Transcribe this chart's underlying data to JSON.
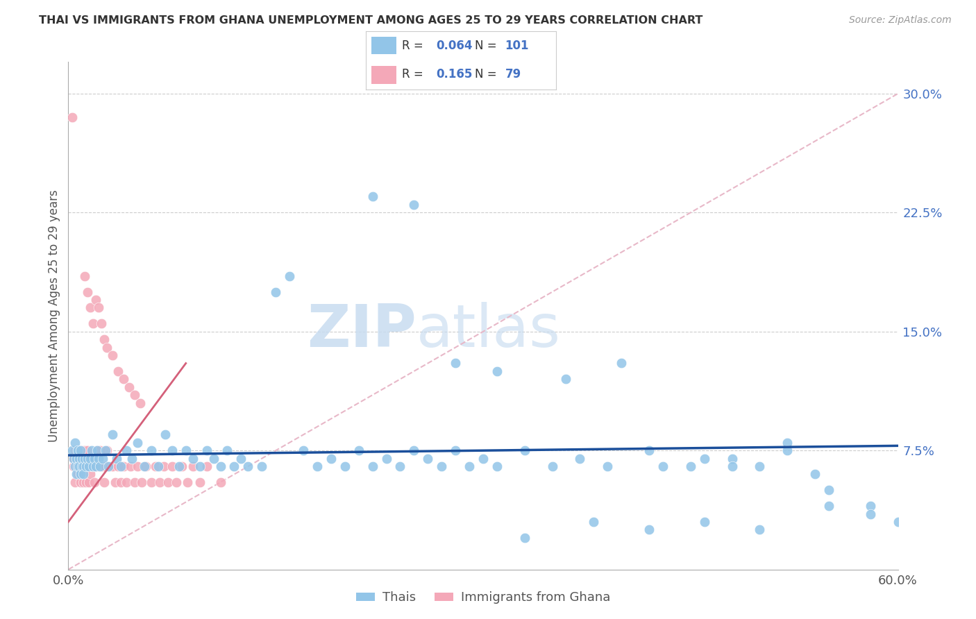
{
  "title": "THAI VS IMMIGRANTS FROM GHANA UNEMPLOYMENT AMONG AGES 25 TO 29 YEARS CORRELATION CHART",
  "source": "Source: ZipAtlas.com",
  "ylabel": "Unemployment Among Ages 25 to 29 years",
  "xlim": [
    0.0,
    0.6
  ],
  "ylim": [
    0.0,
    0.32
  ],
  "ytick_vals": [
    0.075,
    0.15,
    0.225,
    0.3
  ],
  "ytick_labels": [
    "7.5%",
    "15.0%",
    "22.5%",
    "30.0%"
  ],
  "xtick_vals": [
    0.0,
    0.6
  ],
  "xtick_labels": [
    "0.0%",
    "60.0%"
  ],
  "thai_R": 0.064,
  "thai_N": 101,
  "ghana_R": 0.165,
  "ghana_N": 79,
  "thai_color": "#92C5E8",
  "ghana_color": "#F4A8B8",
  "thai_line_color": "#1B4F9B",
  "ghana_line_color": "#D4607A",
  "diag_line_color": "#E8B8C8",
  "grid_color": "#CCCCCC",
  "watermark_color": "#C8DCF0",
  "thai_x": [
    0.003,
    0.004,
    0.005,
    0.005,
    0.006,
    0.006,
    0.007,
    0.007,
    0.008,
    0.008,
    0.009,
    0.009,
    0.01,
    0.01,
    0.011,
    0.011,
    0.012,
    0.013,
    0.014,
    0.015,
    0.016,
    0.017,
    0.018,
    0.019,
    0.02,
    0.021,
    0.022,
    0.023,
    0.025,
    0.027,
    0.029,
    0.032,
    0.035,
    0.038,
    0.042,
    0.046,
    0.05,
    0.055,
    0.06,
    0.065,
    0.07,
    0.075,
    0.08,
    0.085,
    0.09,
    0.095,
    0.1,
    0.105,
    0.11,
    0.115,
    0.12,
    0.125,
    0.13,
    0.14,
    0.15,
    0.16,
    0.17,
    0.18,
    0.19,
    0.2,
    0.21,
    0.22,
    0.23,
    0.24,
    0.25,
    0.26,
    0.27,
    0.28,
    0.29,
    0.3,
    0.31,
    0.33,
    0.35,
    0.37,
    0.39,
    0.42,
    0.45,
    0.48,
    0.5,
    0.52,
    0.54,
    0.28,
    0.31,
    0.36,
    0.4,
    0.43,
    0.46,
    0.48,
    0.52,
    0.55,
    0.58,
    0.6,
    0.22,
    0.25,
    0.33,
    0.38,
    0.42,
    0.46,
    0.5,
    0.55,
    0.58
  ],
  "thai_y": [
    0.075,
    0.07,
    0.065,
    0.08,
    0.06,
    0.07,
    0.065,
    0.075,
    0.07,
    0.065,
    0.06,
    0.075,
    0.065,
    0.07,
    0.065,
    0.06,
    0.07,
    0.065,
    0.07,
    0.065,
    0.07,
    0.075,
    0.065,
    0.07,
    0.065,
    0.075,
    0.07,
    0.065,
    0.07,
    0.075,
    0.065,
    0.085,
    0.07,
    0.065,
    0.075,
    0.07,
    0.08,
    0.065,
    0.075,
    0.065,
    0.085,
    0.075,
    0.065,
    0.075,
    0.07,
    0.065,
    0.075,
    0.07,
    0.065,
    0.075,
    0.065,
    0.07,
    0.065,
    0.065,
    0.175,
    0.185,
    0.075,
    0.065,
    0.07,
    0.065,
    0.075,
    0.065,
    0.07,
    0.065,
    0.075,
    0.07,
    0.065,
    0.075,
    0.065,
    0.07,
    0.065,
    0.075,
    0.065,
    0.07,
    0.065,
    0.075,
    0.065,
    0.07,
    0.065,
    0.08,
    0.06,
    0.13,
    0.125,
    0.12,
    0.13,
    0.065,
    0.07,
    0.065,
    0.075,
    0.05,
    0.04,
    0.03,
    0.235,
    0.23,
    0.02,
    0.03,
    0.025,
    0.03,
    0.025,
    0.04,
    0.035
  ],
  "ghana_x": [
    0.003,
    0.004,
    0.004,
    0.005,
    0.005,
    0.006,
    0.006,
    0.007,
    0.007,
    0.008,
    0.008,
    0.009,
    0.009,
    0.01,
    0.01,
    0.011,
    0.011,
    0.012,
    0.012,
    0.013,
    0.013,
    0.014,
    0.014,
    0.015,
    0.015,
    0.016,
    0.016,
    0.017,
    0.018,
    0.019,
    0.02,
    0.021,
    0.022,
    0.023,
    0.024,
    0.025,
    0.026,
    0.027,
    0.028,
    0.03,
    0.032,
    0.034,
    0.036,
    0.038,
    0.04,
    0.042,
    0.045,
    0.048,
    0.05,
    0.053,
    0.056,
    0.06,
    0.063,
    0.066,
    0.069,
    0.072,
    0.075,
    0.078,
    0.082,
    0.086,
    0.09,
    0.095,
    0.1,
    0.11,
    0.012,
    0.014,
    0.016,
    0.018,
    0.02,
    0.022,
    0.024,
    0.026,
    0.028,
    0.032,
    0.036,
    0.04,
    0.044,
    0.048,
    0.052
  ],
  "ghana_y": [
    0.285,
    0.07,
    0.065,
    0.075,
    0.055,
    0.07,
    0.065,
    0.075,
    0.06,
    0.07,
    0.065,
    0.075,
    0.055,
    0.065,
    0.075,
    0.07,
    0.055,
    0.065,
    0.075,
    0.07,
    0.055,
    0.065,
    0.075,
    0.065,
    0.055,
    0.07,
    0.06,
    0.065,
    0.065,
    0.055,
    0.065,
    0.075,
    0.065,
    0.075,
    0.065,
    0.065,
    0.055,
    0.065,
    0.075,
    0.065,
    0.065,
    0.055,
    0.065,
    0.055,
    0.065,
    0.055,
    0.065,
    0.055,
    0.065,
    0.055,
    0.065,
    0.055,
    0.065,
    0.055,
    0.065,
    0.055,
    0.065,
    0.055,
    0.065,
    0.055,
    0.065,
    0.055,
    0.065,
    0.055,
    0.185,
    0.175,
    0.165,
    0.155,
    0.17,
    0.165,
    0.155,
    0.145,
    0.14,
    0.135,
    0.125,
    0.12,
    0.115,
    0.11,
    0.105
  ]
}
